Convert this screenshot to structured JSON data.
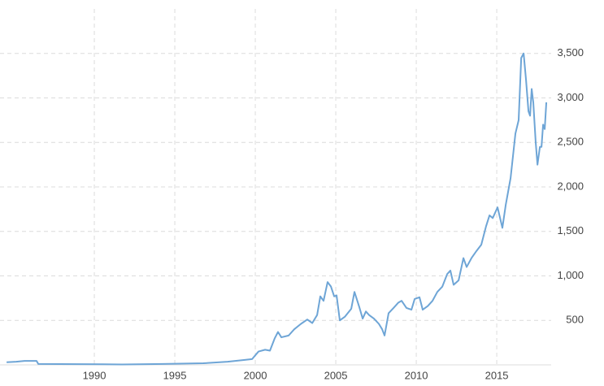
{
  "chart_data": {
    "type": "line",
    "x": [
      1984.55,
      1985.15,
      1985.66,
      1986.41,
      1986.52,
      1989.19,
      1991.72,
      1994.24,
      1996.77,
      1998.28,
      1999.29,
      1999.8,
      2000.2,
      2000.61,
      2000.91,
      2001.21,
      2001.41,
      2001.62,
      2002.07,
      2002.42,
      2002.83,
      2003.23,
      2003.54,
      2003.84,
      2004.04,
      2004.24,
      2004.49,
      2004.7,
      2004.9,
      2005.05,
      2005.25,
      2005.56,
      2005.96,
      2006.16,
      2006.46,
      2006.67,
      2006.87,
      2007.07,
      2007.37,
      2007.68,
      2007.88,
      2008.03,
      2008.28,
      2008.59,
      2008.89,
      2009.09,
      2009.39,
      2009.7,
      2009.9,
      2010.2,
      2010.4,
      2010.71,
      2011.01,
      2011.31,
      2011.62,
      2011.92,
      2012.12,
      2012.32,
      2012.63,
      2012.93,
      2013.13,
      2013.43,
      2013.74,
      2014.04,
      2014.34,
      2014.55,
      2014.75,
      2015.05,
      2015.35,
      2015.56,
      2015.86,
      2016.16,
      2016.36,
      2016.52,
      2016.67,
      2016.82,
      2016.97,
      2017.07,
      2017.17,
      2017.27,
      2017.42,
      2017.53,
      2017.68,
      2017.78,
      2017.88,
      2017.98,
      2018.08
    ],
    "series": [
      {
        "color": "#6ea5d6",
        "values": [
          30,
          35,
          45,
          45,
          10,
          8,
          5,
          10,
          18,
          35,
          55,
          65,
          150,
          170,
          160,
          300,
          370,
          310,
          330,
          400,
          460,
          510,
          470,
          560,
          770,
          720,
          930,
          880,
          770,
          780,
          500,
          540,
          630,
          820,
          650,
          520,
          600,
          560,
          520,
          460,
          400,
          330,
          580,
          640,
          700,
          720,
          640,
          620,
          740,
          760,
          620,
          660,
          720,
          820,
          880,
          1020,
          1060,
          900,
          950,
          1200,
          1100,
          1200,
          1280,
          1350,
          1560,
          1680,
          1650,
          1770,
          1540,
          1800,
          2100,
          2600,
          2750,
          3450,
          3500,
          3200,
          2850,
          2800,
          3100,
          2950,
          2500,
          2250,
          2450,
          2450,
          2700,
          2650,
          2950
        ]
      }
    ],
    "xlim": [
      1984.14,
      2018.38
    ],
    "xticks": [
      1990,
      1995,
      2000,
      2005,
      2010,
      2015
    ],
    "ylim": [
      0,
      4000
    ],
    "yticks": [
      500,
      {
        "value": 1000,
        "label": "1,000"
      },
      {
        "value": 1500,
        "label": "1,500"
      },
      {
        "value": 2000,
        "label": "2,000"
      },
      {
        "value": 2500,
        "label": "2,500"
      },
      {
        "value": 3000,
        "label": "3,000"
      },
      {
        "value": 3500,
        "label": "3,500"
      }
    ],
    "grid": true
  }
}
